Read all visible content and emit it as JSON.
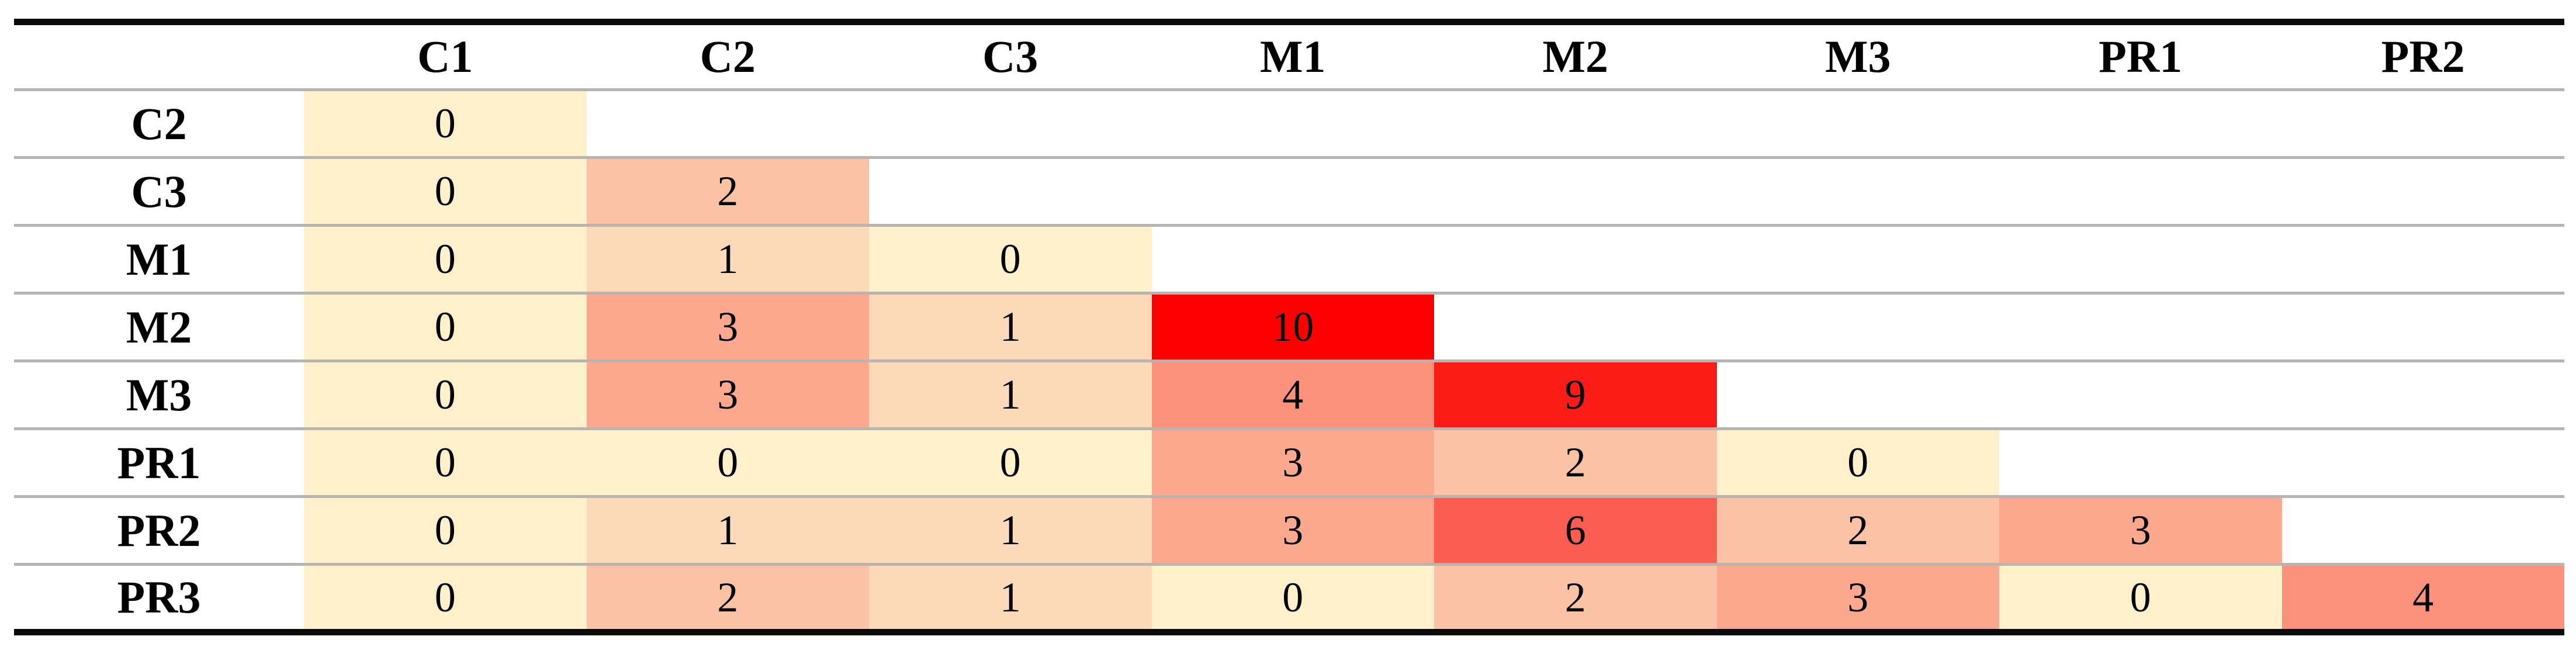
{
  "chart_data": {
    "type": "heatmap",
    "title": "",
    "layout": "lower-triangular",
    "x_labels": [
      "C1",
      "C2",
      "C3",
      "M1",
      "M2",
      "M3",
      "PR1",
      "PR2"
    ],
    "y_labels": [
      "C2",
      "C3",
      "M1",
      "M2",
      "M3",
      "PR1",
      "PR2",
      "PR3"
    ],
    "matrix": [
      [
        0,
        null,
        null,
        null,
        null,
        null,
        null,
        null
      ],
      [
        0,
        2,
        null,
        null,
        null,
        null,
        null,
        null
      ],
      [
        0,
        1,
        0,
        null,
        null,
        null,
        null,
        null
      ],
      [
        0,
        3,
        1,
        10,
        null,
        null,
        null,
        null
      ],
      [
        0,
        3,
        1,
        4,
        9,
        null,
        null,
        null
      ],
      [
        0,
        0,
        0,
        3,
        2,
        0,
        null,
        null
      ],
      [
        0,
        1,
        1,
        3,
        6,
        2,
        3,
        null
      ],
      [
        0,
        2,
        1,
        0,
        2,
        3,
        0,
        4
      ]
    ],
    "value_range": [
      0,
      10
    ],
    "value_colors": {
      "0": "#FDF0CA",
      "1": "#FCD9B8",
      "2": "#FBC2A6",
      "3": "#FBA88F",
      "4": "#FC927C",
      "6": "#F95E50",
      "9": "#FA1B16",
      "10": "#FE0000"
    },
    "empty_color": "#FFFFFF",
    "grid": {
      "row_line_color": "#b5b5b5",
      "outer_rule_color": "#0a0a0a"
    },
    "legend": "none"
  }
}
